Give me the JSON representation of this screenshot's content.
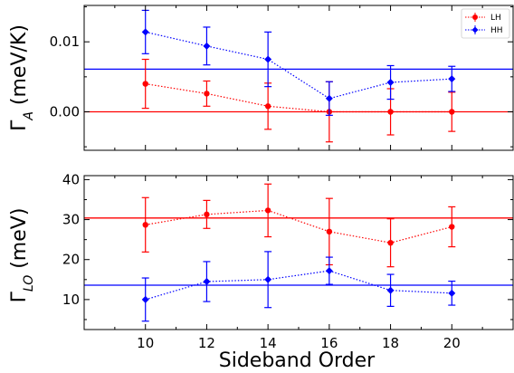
{
  "colors": {
    "LH": "#ff0000",
    "HH": "#0000ff",
    "axes": "#000000"
  },
  "chart_data": [
    {
      "type": "scatter",
      "panel": "top",
      "ylabel_main": "Γ",
      "ylabel_sub": "A",
      "ylabel_rest": " (meV/K)",
      "xlabel": "",
      "x_ticks": [
        10,
        12,
        14,
        16,
        18,
        20
      ],
      "xlim": [
        8,
        22
      ],
      "ylim": [
        -0.0055,
        0.0152
      ],
      "y_ticks": [
        {
          "value": 0.01,
          "label": "0.01"
        },
        {
          "value": 0.0,
          "label": "0.00"
        }
      ],
      "grid": false,
      "legend": "top-right",
      "legend_entries": [
        {
          "name": "LH",
          "color": "#ff0000",
          "marker": "circle"
        },
        {
          "name": "HH",
          "color": "#0000ff",
          "marker": "diamond"
        }
      ],
      "series": [
        {
          "name": "LH",
          "color": "#ff0000",
          "marker": "circle",
          "linestyle": "dotted",
          "x": [
            10,
            12,
            14,
            16,
            18,
            20
          ],
          "y": [
            0.004,
            0.0026,
            0.0008,
            0.0,
            0.0,
            0.0
          ],
          "err": [
            0.0035,
            0.0018,
            0.0033,
            0.0043,
            0.0033,
            0.0028
          ]
        },
        {
          "name": "HH",
          "color": "#0000ff",
          "marker": "diamond",
          "linestyle": "dotted",
          "x": [
            10,
            12,
            14,
            16,
            18,
            20
          ],
          "y": [
            0.0114,
            0.0094,
            0.0075,
            0.0019,
            0.0042,
            0.0047
          ],
          "err": [
            0.0031,
            0.0027,
            0.0039,
            0.0024,
            0.0024,
            0.0018
          ]
        }
      ],
      "hlines": [
        {
          "series": "LH",
          "value": 0.0,
          "color": "#ff0000"
        },
        {
          "series": "HH",
          "value": 0.0061,
          "color": "#0000ff"
        }
      ]
    },
    {
      "type": "scatter",
      "panel": "bottom",
      "ylabel_main": "Γ",
      "ylabel_sub": "LO",
      "ylabel_rest": " (meV)",
      "xlabel": "Sideband Order",
      "x_ticks": [
        10,
        12,
        14,
        16,
        18,
        20
      ],
      "xlim": [
        8,
        22
      ],
      "ylim": [
        2.5,
        41
      ],
      "y_ticks": [
        {
          "value": 10,
          "label": "10"
        },
        {
          "value": 20,
          "label": "20"
        },
        {
          "value": 30,
          "label": "30"
        },
        {
          "value": 40,
          "label": "40"
        }
      ],
      "grid": false,
      "series": [
        {
          "name": "LH",
          "color": "#ff0000",
          "marker": "circle",
          "linestyle": "dotted",
          "x": [
            10,
            12,
            14,
            16,
            18,
            20
          ],
          "y": [
            28.7,
            31.3,
            32.3,
            27.0,
            24.2,
            28.2
          ],
          "err": [
            6.8,
            3.5,
            6.6,
            8.3,
            6.0,
            5.0
          ]
        },
        {
          "name": "HH",
          "color": "#0000ff",
          "marker": "diamond",
          "linestyle": "dotted",
          "x": [
            10,
            12,
            14,
            16,
            18,
            20
          ],
          "y": [
            10.0,
            14.5,
            15.0,
            17.2,
            12.3,
            11.6
          ],
          "err": [
            5.4,
            5.0,
            7.0,
            3.4,
            4.0,
            3.0
          ]
        }
      ],
      "hlines": [
        {
          "series": "LH",
          "value": 30.4,
          "color": "#ff0000"
        },
        {
          "series": "HH",
          "value": 13.6,
          "color": "#0000ff"
        }
      ]
    }
  ]
}
